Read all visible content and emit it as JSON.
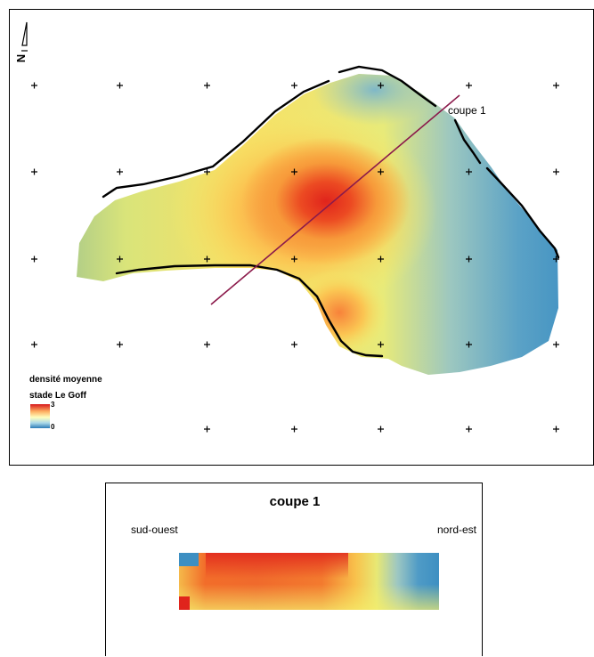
{
  "map": {
    "north_symbol": "N",
    "section_label": "coupe 1",
    "legend": {
      "title_line1": "densité moyenne",
      "title_line2": "stade Le Goff",
      "max_label": "3",
      "min_label": "0",
      "gradient_colors": [
        "#d7191c",
        "#fdae61",
        "#ffffbf",
        "#abd9e9",
        "#2c7bb6"
      ]
    },
    "grid_marker": "+"
  },
  "section": {
    "title": "coupe 1",
    "left_label": "sud-ouest",
    "right_label": "nord-est"
  },
  "colors": {
    "high": "#e8231f",
    "medium": "#f9a03c",
    "low_mid": "#f5ee6c",
    "low": "#8ac0c8",
    "lowest": "#3d8fc2",
    "section_line": "#8b1a4b"
  }
}
